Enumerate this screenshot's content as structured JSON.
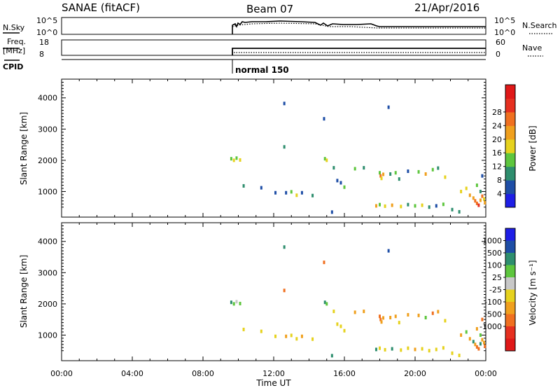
{
  "header": {
    "station": "SANAE (fitACF)",
    "beam": "Beam 07",
    "date": "21/Apr/2016"
  },
  "top_panels": {
    "nsky": {
      "label": "N.Sky",
      "ytick_top": "10^5",
      "ytick_bottom": "10^0",
      "right_label": "N.Search",
      "right_tick_top": "10^5",
      "right_tick_bottom": "10^0"
    },
    "freq": {
      "label_line1": "Freq.",
      "label_line2": "[MHz]",
      "ytick_top": "18",
      "ytick_bottom": "8",
      "right_label": "Nave",
      "right_tick_top": "60",
      "right_tick_bottom": "0"
    },
    "cpid": {
      "label": "CPID",
      "mode": "normal 150"
    }
  },
  "axes": {
    "xlabel": "Time UT",
    "xticks": [
      "00:00",
      "04:00",
      "08:00",
      "12:00",
      "16:00",
      "20:00",
      "00:00"
    ],
    "ylabel": "Slant Range [km]",
    "yticks": [
      "1000",
      "2000",
      "3000",
      "4000"
    ]
  },
  "colorbars": {
    "power": {
      "label": "Power [dB]",
      "ticks": [
        "4",
        "8",
        "12",
        "16",
        "20",
        "24",
        "28"
      ],
      "colors": [
        "#1e1ee6",
        "#1e4ea6",
        "#2e8e6e",
        "#5ec63e",
        "#e6d21e",
        "#f0a01e",
        "#f07020",
        "#e63020",
        "#e01818"
      ]
    },
    "velocity": {
      "label": "Velocity [m s⁻¹]",
      "ticks": [
        "1000",
        "500",
        "100",
        "25",
        "-25",
        "-100",
        "-500",
        "-1000"
      ],
      "colors": [
        "#1e1ee6",
        "#1e4ea6",
        "#2e8e6e",
        "#5ec63e",
        "#c8c8c8",
        "#e6d21e",
        "#f0a01e",
        "#f07020",
        "#e63020",
        "#e01818"
      ]
    }
  },
  "chart_data": [
    {
      "type": "scatter",
      "name": "power",
      "xlim": [
        0,
        24
      ],
      "ylim": [
        180,
        4600
      ],
      "xlabel": "Time UT",
      "ylabel": "Slant Range [km]",
      "points": [
        [
          9.6,
          2050,
          14
        ],
        [
          9.75,
          2000,
          16
        ],
        [
          9.9,
          2070,
          12
        ],
        [
          10.1,
          2010,
          16
        ],
        [
          10.3,
          1180,
          8
        ],
        [
          11.3,
          1120,
          6
        ],
        [
          12.1,
          960,
          4
        ],
        [
          12.6,
          3820,
          6
        ],
        [
          12.6,
          2430,
          8
        ],
        [
          12.7,
          960,
          6
        ],
        [
          13.0,
          990,
          12
        ],
        [
          13.3,
          880,
          16
        ],
        [
          13.6,
          960,
          6
        ],
        [
          14.2,
          870,
          10
        ],
        [
          14.9,
          2050,
          12
        ],
        [
          15.0,
          2000,
          16
        ],
        [
          14.85,
          3330,
          6
        ],
        [
          15.4,
          1760,
          8
        ],
        [
          15.6,
          1350,
          6
        ],
        [
          15.8,
          1280,
          4
        ],
        [
          16.0,
          1140,
          12
        ],
        [
          15.3,
          340,
          6
        ],
        [
          16.6,
          1730,
          12
        ],
        [
          17.1,
          1760,
          10
        ],
        [
          18.0,
          1600,
          14
        ],
        [
          18.05,
          1500,
          24
        ],
        [
          18.1,
          1420,
          18
        ],
        [
          18.2,
          1550,
          20
        ],
        [
          18.5,
          3700,
          6
        ],
        [
          18.6,
          1560,
          10
        ],
        [
          18.9,
          1600,
          14
        ],
        [
          19.1,
          1400,
          8
        ],
        [
          19.6,
          1650,
          4
        ],
        [
          20.2,
          1630,
          12
        ],
        [
          20.6,
          1560,
          22
        ],
        [
          21.0,
          1700,
          14
        ],
        [
          21.3,
          1750,
          10
        ],
        [
          21.7,
          1460,
          16
        ],
        [
          17.8,
          540,
          22
        ],
        [
          18.0,
          580,
          14
        ],
        [
          18.3,
          530,
          18
        ],
        [
          18.7,
          560,
          20
        ],
        [
          19.2,
          520,
          16
        ],
        [
          19.6,
          580,
          8
        ],
        [
          20.0,
          540,
          12
        ],
        [
          20.4,
          560,
          18
        ],
        [
          20.8,
          500,
          10
        ],
        [
          21.2,
          540,
          6
        ],
        [
          21.6,
          590,
          14
        ],
        [
          22.1,
          420,
          8
        ],
        [
          22.5,
          350,
          10
        ],
        [
          22.6,
          1000,
          16
        ],
        [
          22.9,
          1100,
          18
        ],
        [
          23.1,
          880,
          20
        ],
        [
          23.3,
          790,
          22
        ],
        [
          23.4,
          700,
          24
        ],
        [
          23.5,
          620,
          26
        ],
        [
          23.6,
          560,
          28
        ],
        [
          23.7,
          720,
          20
        ],
        [
          23.8,
          850,
          24
        ],
        [
          23.9,
          760,
          16
        ],
        [
          23.95,
          640,
          22
        ],
        [
          23.5,
          1200,
          12
        ],
        [
          23.7,
          1000,
          10
        ],
        [
          23.8,
          1500,
          4
        ]
      ]
    },
    {
      "type": "scatter",
      "name": "velocity",
      "xlim": [
        0,
        24
      ],
      "ylim": [
        180,
        4600
      ],
      "xlabel": "Time UT",
      "ylabel": "Slant Range [km]",
      "points": [
        [
          9.6,
          2050,
          150
        ],
        [
          9.75,
          2000,
          80
        ],
        [
          9.9,
          2070,
          20
        ],
        [
          10.1,
          2010,
          50
        ],
        [
          10.3,
          1180,
          -40
        ],
        [
          11.3,
          1120,
          -80
        ],
        [
          12.1,
          960,
          -60
        ],
        [
          12.6,
          3820,
          300
        ],
        [
          12.6,
          2430,
          -600
        ],
        [
          12.7,
          960,
          -120
        ],
        [
          13.0,
          990,
          -100
        ],
        [
          13.3,
          880,
          -60
        ],
        [
          13.6,
          960,
          -150
        ],
        [
          14.2,
          870,
          -40
        ],
        [
          14.9,
          2050,
          120
        ],
        [
          15.0,
          2000,
          60
        ],
        [
          14.85,
          3330,
          -800
        ],
        [
          15.4,
          1760,
          -80
        ],
        [
          15.6,
          1350,
          -60
        ],
        [
          15.8,
          1280,
          -30
        ],
        [
          16.0,
          1140,
          -50
        ],
        [
          15.3,
          340,
          150
        ],
        [
          16.6,
          1730,
          -300
        ],
        [
          17.1,
          1760,
          -400
        ],
        [
          18.0,
          1600,
          -700
        ],
        [
          18.05,
          1500,
          -900
        ],
        [
          18.1,
          1420,
          -500
        ],
        [
          18.2,
          1550,
          -200
        ],
        [
          18.5,
          3700,
          900
        ],
        [
          18.6,
          1560,
          -300
        ],
        [
          18.9,
          1600,
          -120
        ],
        [
          19.1,
          1400,
          -60
        ],
        [
          19.6,
          1650,
          -300
        ],
        [
          20.2,
          1630,
          -200
        ],
        [
          20.6,
          1560,
          80
        ],
        [
          21.0,
          1700,
          -600
        ],
        [
          21.3,
          1750,
          -300
        ],
        [
          21.7,
          1460,
          -100
        ],
        [
          17.8,
          540,
          400
        ],
        [
          18.0,
          580,
          -80
        ],
        [
          18.3,
          530,
          -60
        ],
        [
          18.7,
          560,
          200
        ],
        [
          19.2,
          520,
          -100
        ],
        [
          19.6,
          580,
          -40
        ],
        [
          20.0,
          540,
          -120
        ],
        [
          20.4,
          560,
          -80
        ],
        [
          20.8,
          500,
          -50
        ],
        [
          21.2,
          540,
          -100
        ],
        [
          21.6,
          590,
          -80
        ],
        [
          22.1,
          420,
          -40
        ],
        [
          22.5,
          350,
          -60
        ],
        [
          22.6,
          1000,
          -150
        ],
        [
          22.9,
          1100,
          60
        ],
        [
          23.1,
          880,
          -300
        ],
        [
          23.3,
          790,
          200
        ],
        [
          23.4,
          700,
          -500
        ],
        [
          23.5,
          620,
          -800
        ],
        [
          23.6,
          560,
          -1000
        ],
        [
          23.7,
          720,
          300
        ],
        [
          23.8,
          850,
          -400
        ],
        [
          23.9,
          760,
          -120
        ],
        [
          23.95,
          640,
          -700
        ],
        [
          23.5,
          1200,
          -200
        ],
        [
          23.7,
          1000,
          40
        ],
        [
          23.8,
          1500,
          -600
        ]
      ]
    }
  ]
}
